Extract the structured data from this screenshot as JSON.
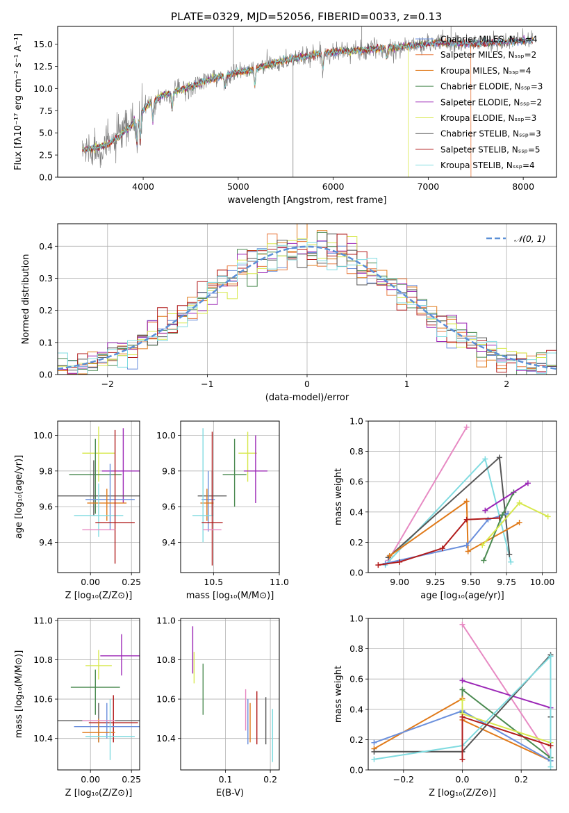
{
  "figure": {
    "title": "PLATE=0329, MJD=52056, FIBERID=0033, z=0.13"
  },
  "colors": {
    "Chabrier MILES": "#6a8fdc",
    "Salpeter MILES": "#e8793e",
    "Kroupa MILES": "#e07a1a",
    "Chabrier ELODIE": "#4a8a50",
    "Salpeter ELODIE": "#9b26b6",
    "Kroupa ELODIE": "#d7e84c",
    "Chabrier STELIB": "#555555",
    "Salpeter STELIB": "#b11b1b",
    "Kroupa STELIB": "#7fdbe0",
    "pink": "#e78ac3",
    "data": "#808080",
    "gauss": "#5b8fd6"
  },
  "chart_data": [
    {
      "id": "spectrum",
      "type": "line",
      "xlabel": "wavelength [Angstrom, rest frame]",
      "ylabel": "Flux [fλ10⁻¹⁷ erg cm⁻² s⁻¹ A⁻¹]",
      "xlim": [
        3100,
        8350
      ],
      "ylim": [
        0,
        17
      ],
      "xticks": [
        "4000",
        "5000",
        "6000",
        "7000",
        "8000"
      ],
      "yticks": [
        "0.0",
        "2.5",
        "5.0",
        "7.5",
        "10.0",
        "12.5",
        "15.0"
      ],
      "xtick_values": [
        4000,
        5000,
        6000,
        7000,
        8000
      ],
      "ytick_values": [
        0,
        2.5,
        5,
        7.5,
        10,
        12.5,
        15
      ],
      "legend_position": "top-right",
      "legend": [
        "Chabrier MILES, Nₛₛₚ=4",
        "Salpeter MILES, Nₛₛₚ=2",
        "Kroupa MILES, Nₛₛₚ=4",
        "Chabrier ELODIE, Nₛₛₚ=3",
        "Salpeter ELODIE, Nₛₛₚ=2",
        "Kroupa ELODIE, Nₛₛₚ=3",
        "Chabrier STELIB, Nₛₛₚ=3",
        "Salpeter STELIB, Nₛₛₚ=5",
        "Kroupa STELIB, Nₛₛₚ=4"
      ],
      "legend_keys": [
        "Chabrier MILES",
        "Salpeter MILES",
        "Kroupa MILES",
        "Chabrier ELODIE",
        "Salpeter ELODIE",
        "Kroupa ELODIE",
        "Chabrier STELIB",
        "Salpeter STELIB",
        "Kroupa STELIB"
      ],
      "continuum": {
        "x": [
          3400,
          3550,
          3650,
          3750,
          3850,
          3950,
          4050,
          4200,
          4350,
          4500,
          4700,
          4900,
          5100,
          5300,
          5500,
          5700,
          5900,
          6100,
          6300,
          6500,
          6700,
          6900,
          7100,
          7300,
          7500,
          7700,
          7900,
          8100
        ],
        "y": [
          3.1,
          3.4,
          3.8,
          4.6,
          5.6,
          6.9,
          8.2,
          9.2,
          9.7,
          10.2,
          11.0,
          11.6,
          12.0,
          12.6,
          13.2,
          13.6,
          14.0,
          14.2,
          14.3,
          14.5,
          14.7,
          14.9,
          15.2,
          15.1,
          15.1,
          15.2,
          15.3,
          15.4
        ]
      },
      "absorption_lines": [
        {
          "x": 3934,
          "depth": 0.45
        },
        {
          "x": 3969,
          "depth": 0.4
        },
        {
          "x": 4102,
          "depth": 0.25
        },
        {
          "x": 4304,
          "depth": 0.2
        },
        {
          "x": 4861,
          "depth": 0.12
        },
        {
          "x": 5175,
          "depth": 0.15
        },
        {
          "x": 5892,
          "depth": 0.12
        },
        {
          "x": 6563,
          "depth": 0.08
        }
      ],
      "model_dropouts": [
        {
          "series": "Kroupa ELODIE",
          "x": 6790
        },
        {
          "series": "Salpeter MILES",
          "x": 7450
        }
      ],
      "sky_spikes": [
        {
          "x": 4950,
          "y": 17
        },
        {
          "x": 5577,
          "y": 0
        },
        {
          "x": 6300,
          "y": 17
        },
        {
          "x": 7240,
          "y": 17
        }
      ]
    },
    {
      "id": "residuals",
      "type": "histogram",
      "xlabel": "(data-model)/error",
      "ylabel": "Normed distribution",
      "xlim": [
        -2.5,
        2.5
      ],
      "ylim": [
        0,
        0.47
      ],
      "xticks": [
        "−2",
        "−1",
        "0",
        "1",
        "2"
      ],
      "yticks": [
        "0.0",
        "0.1",
        "0.2",
        "0.3",
        "0.4"
      ],
      "xtick_values": [
        -2,
        -1,
        0,
        1,
        2
      ],
      "ytick_values": [
        0,
        0.1,
        0.2,
        0.3,
        0.4
      ],
      "grid": true,
      "bins": 50,
      "legend_position": "top-right",
      "gauss_label": "𝒩(0, 1)"
    },
    {
      "id": "age-vs-Z",
      "type": "errorbar",
      "xlabel": "Z [log₁₀(Z/Z⊙)]",
      "ylabel": "age  [log₁₀(age/yr)]",
      "xlim": [
        -0.2,
        0.3
      ],
      "ylim": [
        9.23,
        10.08
      ],
      "xticks": [
        "0.00",
        "0.25"
      ],
      "xtick_values": [
        0,
        0.25
      ],
      "yticks": [
        "9.4",
        "9.6",
        "9.8",
        "10.0"
      ],
      "ytick_values": [
        9.4,
        9.6,
        9.8,
        10.0
      ],
      "grid": true,
      "points": [
        {
          "c": "Kroupa ELODIE",
          "x": 0.05,
          "xe": 0.1,
          "y": 9.9,
          "yl": 9.74,
          "yh": 10.05
        },
        {
          "c": "Salpeter ELODIE",
          "x": 0.2,
          "xe": 0.13,
          "y": 9.8,
          "yl": 9.62,
          "yh": 10.04
        },
        {
          "c": "Chabrier ELODIE",
          "x": 0.03,
          "xe": 0.16,
          "y": 9.78,
          "yl": 9.56,
          "yh": 9.98
        },
        {
          "c": "Chabrier STELIB",
          "x": 0.02,
          "xe": 0.3,
          "y": 9.66,
          "yl": 9.55,
          "yh": 9.86
        },
        {
          "c": "Chabrier MILES",
          "x": 0.12,
          "xe": 0.15,
          "y": 9.64,
          "yl": 9.47,
          "yh": 9.84
        },
        {
          "c": "Kroupa MILES",
          "x": 0.1,
          "xe": 0.12,
          "y": 9.62,
          "yl": 9.52,
          "yh": 9.7
        },
        {
          "c": "Kroupa STELIB",
          "x": 0.05,
          "xe": 0.15,
          "y": 9.55,
          "yl": 9.43,
          "yh": 9.73
        },
        {
          "c": "Salpeter STELIB",
          "x": 0.15,
          "xe": 0.12,
          "y": 9.51,
          "yl": 9.28,
          "yh": 10.03
        },
        {
          "c": "pink",
          "x": 0.05,
          "xe": 0.1,
          "y": 9.47,
          "yl": 9.47,
          "yh": 9.47
        }
      ]
    },
    {
      "id": "age-vs-mass",
      "type": "errorbar",
      "xlabel": "mass [log₁₀(M/M⊙)]",
      "ylabel": "",
      "xlim": [
        10.25,
        11.0
      ],
      "ylim": [
        9.23,
        10.08
      ],
      "xticks": [
        "10.5",
        "11.0"
      ],
      "xtick_values": [
        10.5,
        11.0
      ],
      "yticks": [
        "9.4",
        "9.6",
        "9.8",
        "10.0"
      ],
      "ytick_values": [
        9.4,
        9.6,
        9.8,
        10.0
      ],
      "grid": true,
      "points": [
        {
          "c": "Kroupa ELODIE",
          "x": 10.76,
          "xe": 0.07,
          "y": 9.9,
          "yl": 9.74,
          "yh": 10.02
        },
        {
          "c": "Salpeter ELODIE",
          "x": 10.82,
          "xe": 0.09,
          "y": 9.8,
          "yl": 9.62,
          "yh": 10.0
        },
        {
          "c": "Chabrier ELODIE",
          "x": 10.66,
          "xe": 0.09,
          "y": 9.78,
          "yl": 9.6,
          "yh": 9.98
        },
        {
          "c": "Chabrier STELIB",
          "x": 10.49,
          "xe": 0.11,
          "y": 9.66,
          "yl": 9.55,
          "yh": 9.8
        },
        {
          "c": "Chabrier MILES",
          "x": 10.46,
          "xe": 0.05,
          "y": 9.64,
          "yl": 9.46,
          "yh": 9.8
        },
        {
          "c": "Kroupa MILES",
          "x": 10.45,
          "xe": 0.05,
          "y": 9.62,
          "yl": 9.52,
          "yh": 9.7
        },
        {
          "c": "Kroupa STELIB",
          "x": 10.42,
          "xe": 0.08,
          "y": 9.55,
          "yl": 9.4,
          "yh": 10.04
        },
        {
          "c": "Salpeter STELIB",
          "x": 10.49,
          "xe": 0.08,
          "y": 9.51,
          "yl": 9.27,
          "yh": 10.02
        },
        {
          "c": "pink",
          "x": 10.49,
          "xe": 0.07,
          "y": 9.47,
          "yl": 9.47,
          "yh": 9.47
        }
      ]
    },
    {
      "id": "weight-vs-age",
      "type": "line",
      "xlabel": "age  [log₁₀(age/yr)]",
      "ylabel": "mass weight",
      "xlim": [
        8.78,
        10.1
      ],
      "ylim": [
        0,
        1
      ],
      "xticks": [
        "9.00",
        "9.25",
        "9.50",
        "9.75",
        "10.00"
      ],
      "xtick_values": [
        9.0,
        9.25,
        9.5,
        9.75,
        10.0
      ],
      "yticks": [
        "0.0",
        "0.2",
        "0.4",
        "0.6",
        "0.8",
        "1.0"
      ],
      "ytick_values": [
        0,
        0.2,
        0.4,
        0.6,
        0.8,
        1.0
      ],
      "grid": true,
      "series": [
        {
          "c": "pink",
          "x": [
            8.92,
            9.47
          ],
          "y": [
            0.08,
            0.96
          ]
        },
        {
          "c": "Kroupa STELIB",
          "x": [
            8.9,
            9.6,
            9.78
          ],
          "y": [
            0.05,
            0.75,
            0.07
          ]
        },
        {
          "c": "Chabrier STELIB",
          "x": [
            8.92,
            9.7,
            9.77
          ],
          "y": [
            0.1,
            0.76,
            0.12
          ]
        },
        {
          "c": "Kroupa MILES",
          "x": [
            8.93,
            9.47,
            9.48,
            9.84
          ],
          "y": [
            0.11,
            0.47,
            0.14,
            0.33
          ]
        },
        {
          "c": "Chabrier MILES",
          "x": [
            8.9,
            9.47,
            9.62,
            9.76
          ],
          "y": [
            0.06,
            0.18,
            0.35,
            0.39
          ]
        },
        {
          "c": "Salpeter STELIB",
          "x": [
            8.85,
            9.0,
            9.3,
            9.47,
            9.7
          ],
          "y": [
            0.05,
            0.07,
            0.16,
            0.35,
            0.36
          ]
        },
        {
          "c": "Chabrier ELODIE",
          "x": [
            9.59,
            9.72,
            9.8
          ],
          "y": [
            0.08,
            0.38,
            0.53
          ]
        },
        {
          "c": "Salpeter ELODIE",
          "x": [
            9.6,
            9.9
          ],
          "y": [
            0.41,
            0.59
          ]
        },
        {
          "c": "Kroupa ELODIE",
          "x": [
            9.58,
            9.84,
            10.04
          ],
          "y": [
            0.18,
            0.46,
            0.37
          ]
        }
      ]
    },
    {
      "id": "mass-vs-Z",
      "type": "errorbar",
      "xlabel": "Z [log₁₀(Z/Z⊙)]",
      "ylabel": "mass [log₁₀(M/M⊙)]",
      "xlim": [
        -0.2,
        0.3
      ],
      "ylim": [
        10.24,
        11.01
      ],
      "xticks": [
        "0.00",
        "0.25"
      ],
      "xtick_values": [
        0,
        0.25
      ],
      "yticks": [
        "10.4",
        "10.6",
        "10.8",
        "11.0"
      ],
      "ytick_values": [
        10.4,
        10.6,
        10.8,
        11.0
      ],
      "grid": true,
      "points": [
        {
          "c": "Salpeter ELODIE",
          "x": 0.19,
          "xe": 0.13,
          "y": 10.82,
          "yl": 10.72,
          "yh": 10.93
        },
        {
          "c": "Kroupa ELODIE",
          "x": 0.05,
          "xe": 0.08,
          "y": 10.77,
          "yl": 10.7,
          "yh": 10.85
        },
        {
          "c": "Chabrier ELODIE",
          "x": 0.03,
          "xe": 0.15,
          "y": 10.66,
          "yl": 10.52,
          "yh": 10.75
        },
        {
          "c": "Chabrier STELIB",
          "x": 0.05,
          "xe": 0.25,
          "y": 10.49,
          "yl": 10.38,
          "yh": 10.58
        },
        {
          "c": "Salpeter STELIB",
          "x": 0.14,
          "xe": 0.15,
          "y": 10.48,
          "yl": 10.38,
          "yh": 10.62
        },
        {
          "c": "Chabrier MILES",
          "x": 0.1,
          "xe": 0.2,
          "y": 10.46,
          "yl": 10.4,
          "yh": 10.58
        },
        {
          "c": "Kroupa MILES",
          "x": 0.05,
          "xe": 0.1,
          "y": 10.43,
          "yl": 10.38,
          "yh": 10.5
        },
        {
          "c": "Kroupa STELIB",
          "x": 0.12,
          "xe": 0.15,
          "y": 10.41,
          "yl": 10.29,
          "yh": 10.6
        },
        {
          "c": "pink",
          "x": 0.05,
          "xe": 0.1,
          "y": 10.49,
          "yl": 10.49,
          "yh": 10.49
        }
      ]
    },
    {
      "id": "mass-vs-ebv",
      "type": "errorbar",
      "xlabel": "E(B-V)",
      "ylabel": "",
      "xlim": [
        0.0,
        0.22
      ],
      "ylim": [
        10.24,
        11.01
      ],
      "xticks": [
        "0.1",
        "0.2"
      ],
      "xtick_values": [
        0.1,
        0.2
      ],
      "yticks": [
        "10.4",
        "10.6",
        "10.8",
        "11.0"
      ],
      "ytick_values": [
        10.4,
        10.6,
        10.8,
        11.0
      ],
      "grid": true,
      "points": [
        {
          "c": "Salpeter ELODIE",
          "x": 0.027,
          "xe": 0,
          "y": 10.82,
          "yl": 10.73,
          "yh": 10.97
        },
        {
          "c": "Kroupa ELODIE",
          "x": 0.03,
          "xe": 0,
          "y": 10.77,
          "yl": 10.68,
          "yh": 10.84
        },
        {
          "c": "Chabrier ELODIE",
          "x": 0.05,
          "xe": 0,
          "y": 10.66,
          "yl": 10.52,
          "yh": 10.78
        },
        {
          "c": "pink",
          "x": 0.145,
          "xe": 0,
          "y": 10.54,
          "yl": 10.44,
          "yh": 10.65
        },
        {
          "c": "Chabrier MILES",
          "x": 0.15,
          "xe": 0,
          "y": 10.48,
          "yl": 10.37,
          "yh": 10.6
        },
        {
          "c": "Kroupa MILES",
          "x": 0.155,
          "xe": 0,
          "y": 10.47,
          "yl": 10.38,
          "yh": 10.58
        },
        {
          "c": "Salpeter STELIB",
          "x": 0.17,
          "xe": 0,
          "y": 10.5,
          "yl": 10.37,
          "yh": 10.64
        },
        {
          "c": "Chabrier STELIB",
          "x": 0.19,
          "xe": 0,
          "y": 10.49,
          "yl": 10.37,
          "yh": 10.61
        },
        {
          "c": "Kroupa STELIB",
          "x": 0.205,
          "xe": 0,
          "y": 10.4,
          "yl": 10.28,
          "yh": 10.55
        }
      ]
    },
    {
      "id": "weight-vs-Z",
      "type": "line",
      "xlabel": "Z [log₁₀(Z/Z⊙)]",
      "ylabel": "mass weight",
      "xlim": [
        -0.32,
        0.32
      ],
      "ylim": [
        0,
        1
      ],
      "xticks": [
        "−0.2",
        "0.0",
        "0.2"
      ],
      "xtick_values": [
        -0.2,
        0,
        0.2
      ],
      "yticks": [
        "0.0",
        "0.2",
        "0.4",
        "0.6",
        "0.8",
        "1.0"
      ],
      "ytick_values": [
        0,
        0.2,
        0.4,
        0.6,
        0.8,
        1.0
      ],
      "grid": true,
      "series": [
        {
          "c": "pink",
          "x": [
            0.0,
            0.3
          ],
          "y": [
            0.96,
            0.08
          ]
        },
        {
          "c": "Salpeter ELODIE",
          "x": [
            0.0,
            0.3
          ],
          "y": [
            0.59,
            0.41
          ]
        },
        {
          "c": "Chabrier ELODIE",
          "x": [
            0.0,
            0.0,
            0.3
          ],
          "y": [
            0.38,
            0.53,
            0.08
          ]
        },
        {
          "c": "Kroupa MILES",
          "x": [
            -0.3,
            0.0,
            0.0,
            0.3
          ],
          "y": [
            0.14,
            0.47,
            0.33,
            0.06
          ]
        },
        {
          "c": "Chabrier MILES",
          "x": [
            -0.3,
            0.0,
            0.3
          ],
          "y": [
            0.18,
            0.39,
            0.06
          ]
        },
        {
          "c": "Kroupa ELODIE",
          "x": [
            0.0,
            0.0,
            0.3
          ],
          "y": [
            0.46,
            0.37,
            0.18
          ]
        },
        {
          "c": "Chabrier STELIB",
          "x": [
            -0.3,
            0.0,
            0.3,
            0.3
          ],
          "y": [
            0.12,
            0.12,
            0.76,
            0.35
          ]
        },
        {
          "c": "Kroupa STELIB",
          "x": [
            -0.3,
            0.0,
            0.3,
            0.3
          ],
          "y": [
            0.07,
            0.16,
            0.75,
            0.02
          ]
        },
        {
          "c": "Salpeter STELIB",
          "x": [
            0.0,
            0.0,
            0.3
          ],
          "y": [
            0.07,
            0.35,
            0.16
          ]
        }
      ]
    }
  ]
}
